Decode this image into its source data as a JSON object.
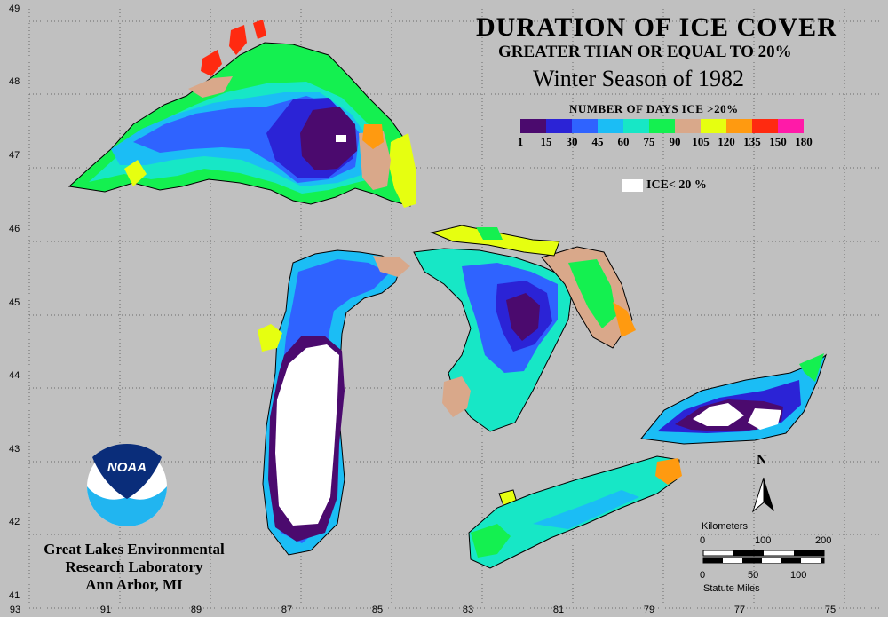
{
  "title": {
    "line1": "DURATION OF ICE COVER",
    "line2": "GREATER THAN OR EQUAL TO 20%",
    "line3": "Winter Season of 1982"
  },
  "legend": {
    "title": "NUMBER OF DAYS ICE >20%",
    "ticks": [
      "1",
      "15",
      "30",
      "45",
      "60",
      "75",
      "90",
      "105",
      "120",
      "135",
      "150",
      "180"
    ],
    "colors": [
      "#4b0a6e",
      "#2b23d6",
      "#2f63ff",
      "#1bbdf5",
      "#17e7c6",
      "#14f050",
      "#d9a88a",
      "#e6ff10",
      "#ff9a10",
      "#ff2a10",
      "#ff1aa8"
    ],
    "ice_below_label": "ICE< 20 %",
    "ice_below_color": "#ffffff"
  },
  "axes": {
    "latitudes": [
      "49",
      "48",
      "47",
      "46",
      "45",
      "44",
      "43",
      "42",
      "41"
    ],
    "longitudes": [
      "93",
      "91",
      "89",
      "87",
      "85",
      "83",
      "81",
      "79",
      "77",
      "75"
    ]
  },
  "credit": {
    "logo_text": "NOAA",
    "line1": "Great Lakes Environmental",
    "line2": "Research Laboratory",
    "line3": "Ann Arbor, MI"
  },
  "north_label": "N",
  "scale": {
    "km_label": "Kilometers",
    "km_ticks": [
      "0",
      "100",
      "200"
    ],
    "mi_ticks": [
      "0",
      "50",
      "100"
    ],
    "mi_label": "Statute Miles"
  }
}
